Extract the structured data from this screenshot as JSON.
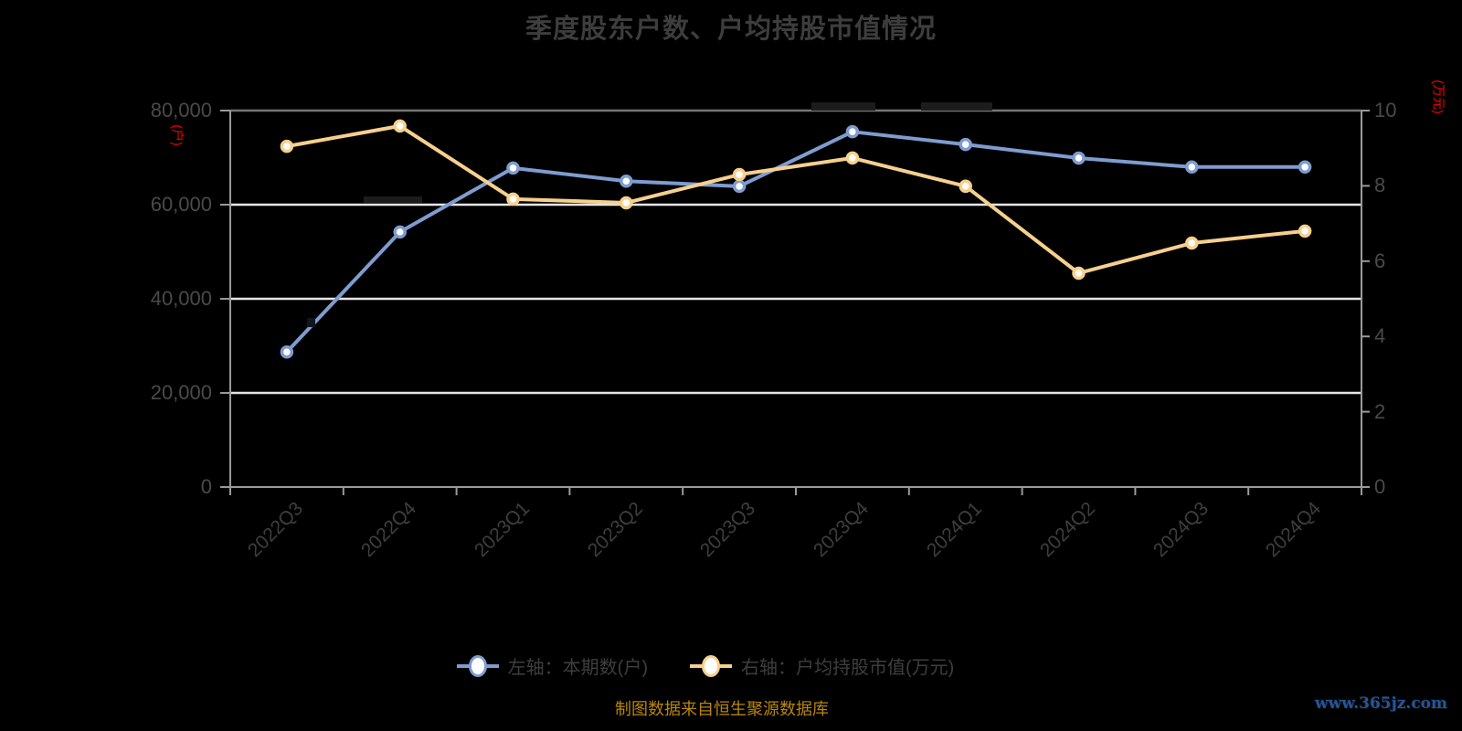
{
  "title": "季度股东户数、户均持股市值情况",
  "axes": {
    "left_unit": "(户)",
    "right_unit": "(万元)",
    "left_tick_labels": [
      "0",
      "20,000",
      "40,000",
      "60,000",
      "80,000"
    ],
    "right_tick_labels": [
      "0",
      "2",
      "4",
      "6",
      "8",
      "10"
    ]
  },
  "chart_data": {
    "type": "line",
    "title": "季度股东户数、户均持股市值情况",
    "categories": [
      "2022Q3",
      "2022Q4",
      "2023Q1",
      "2023Q2",
      "2023Q3",
      "2023Q4",
      "2024Q1",
      "2024Q2",
      "2024Q3",
      "2024Q4"
    ],
    "series": [
      {
        "name": "左轴：本期数(户)",
        "axis": "left",
        "color": "#7e9cd0",
        "marker": "white-circle",
        "values": [
          28700,
          54200,
          67800,
          65000,
          63900,
          75500,
          72800,
          69900,
          68000,
          68000
        ]
      },
      {
        "name": "右轴：户均持股市值(万元)",
        "axis": "right",
        "color": "#f6d08d",
        "marker": "white-circle",
        "values": [
          9.05,
          9.59,
          7.65,
          7.55,
          8.3,
          8.74,
          7.99,
          5.68,
          6.48,
          6.8
        ]
      }
    ],
    "left_axis": {
      "min": 0,
      "max": 80000,
      "interval": 20000
    },
    "right_axis": {
      "min": 0,
      "max": 10,
      "interval": 2
    },
    "grid": "horizontal-only",
    "legend_position": "bottom"
  },
  "footer": {
    "source": "制图数据来自恒生聚源数据库",
    "watermark": "www.365jz.com"
  },
  "colors": {
    "background": "#000000",
    "title_text": "#3d3d3d",
    "tick_text": "#4a4a4a",
    "axis_line": "#9a9a9a",
    "grid_line": "#e6e6e6",
    "grid_line_top": "#777777",
    "unit_text": "#ff0000",
    "series_left": "#7e9cd0",
    "series_right": "#f6d08d",
    "source_text": "#b8860b",
    "watermark_text": "#24549c"
  }
}
